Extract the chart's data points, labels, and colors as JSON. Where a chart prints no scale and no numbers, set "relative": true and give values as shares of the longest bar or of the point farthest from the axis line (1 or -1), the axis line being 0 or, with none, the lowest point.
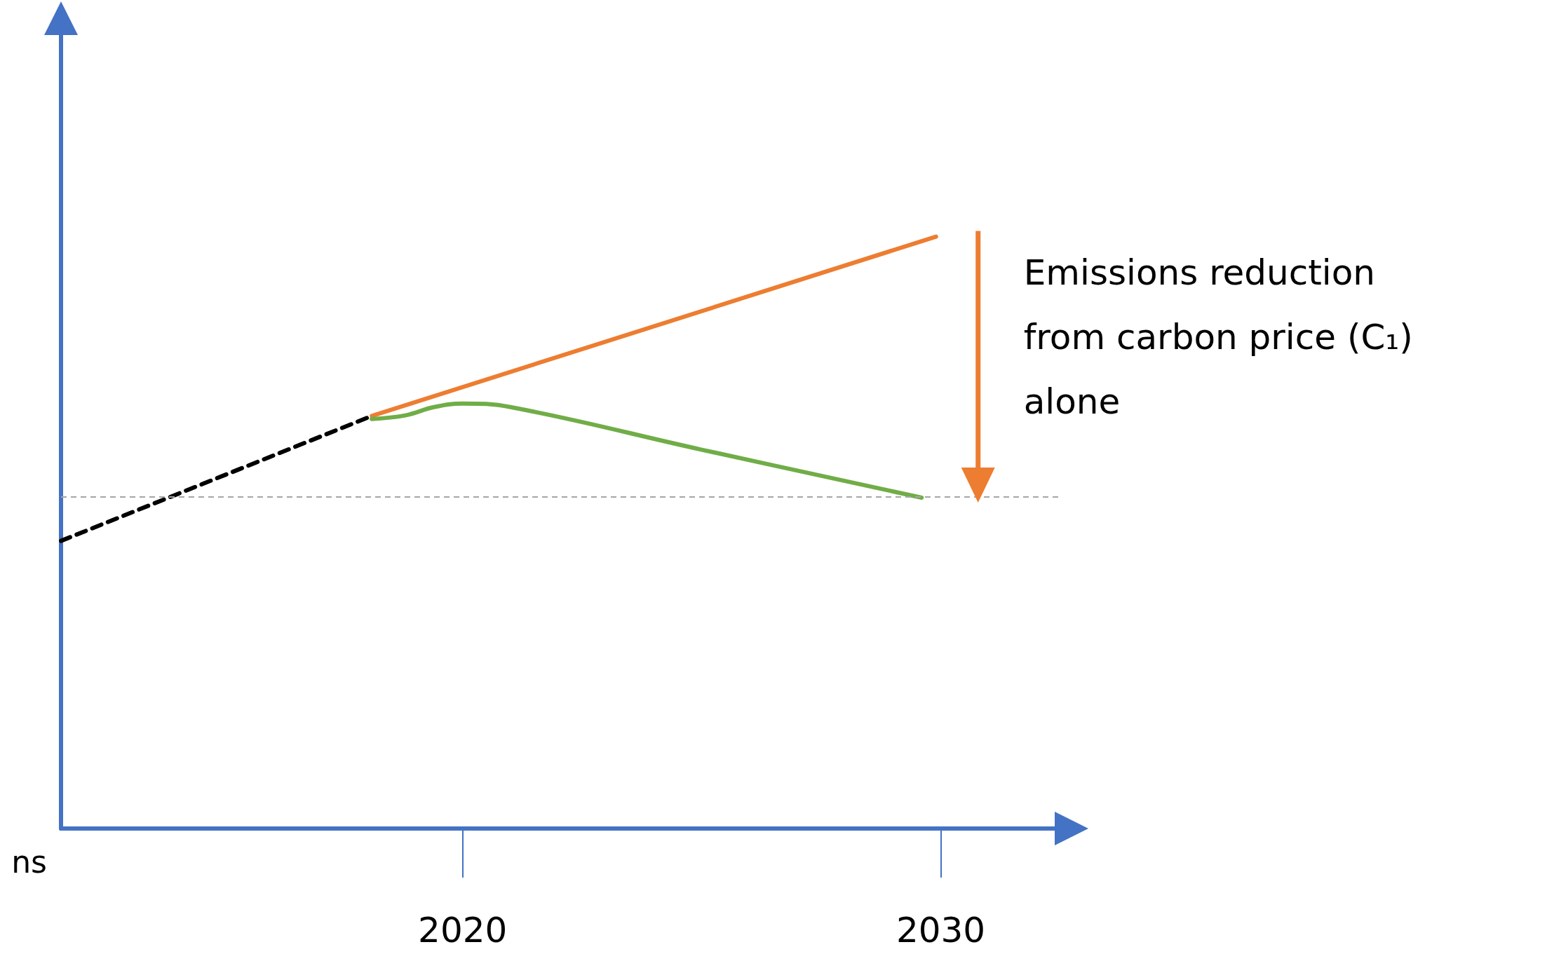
{
  "chart_data": {
    "type": "line",
    "relative": true,
    "ylabel": "ns",
    "annotations": [
      "Emissions reduction\nfrom carbon price (C₁)\nalone"
    ],
    "xlim": [
      2011.6,
      2032.5
    ],
    "xticks": [
      2020,
      2030
    ],
    "series": [
      {
        "color": "#000000",
        "line_style": "dashed",
        "x": [
          2011.6,
          2018.1
        ],
        "values": [
          0.486,
          0.697
        ]
      },
      {
        "color": "#ed7d31",
        "line_style": "solid",
        "x": [
          2018.1,
          2029.9
        ],
        "values": [
          0.697,
          1
        ]
      },
      {
        "color": "#70ad47",
        "line_style": "solid",
        "x": [
          2018.1,
          2018.8,
          2019.4,
          2020.0,
          2021.0,
          2025.0,
          2029.6
        ],
        "values": [
          0.692,
          0.698,
          0.712,
          0.718,
          0.712,
          0.64,
          0.559
        ]
      }
    ],
    "ref_lines": [
      {
        "axis": "y",
        "value": 0.559,
        "color": "#a6a6a6",
        "line_style": "dashed"
      }
    ],
    "grid": false,
    "marker": "none"
  }
}
